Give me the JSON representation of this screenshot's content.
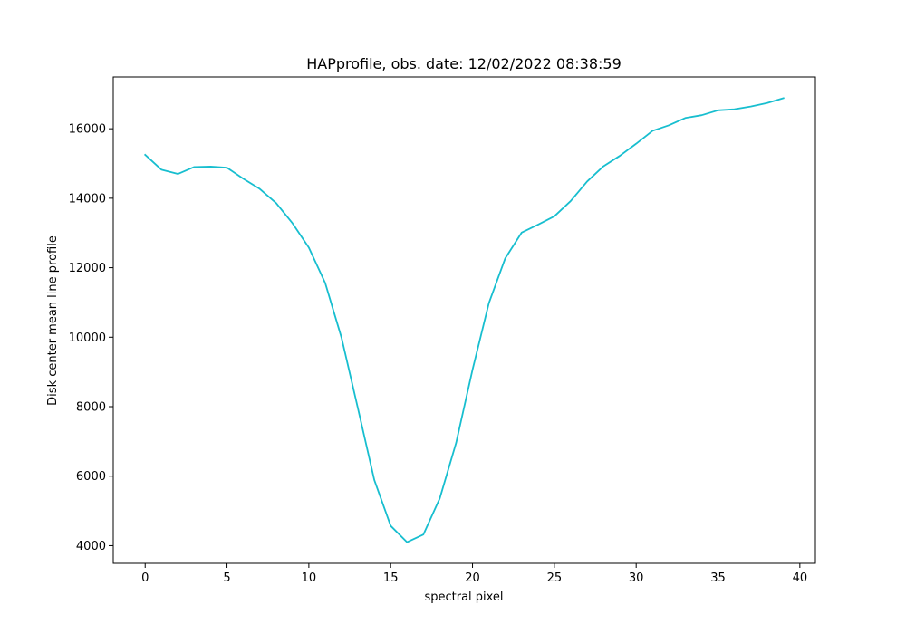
{
  "chart_data": {
    "type": "line",
    "title": "HAPprofile, obs. date: 12/02/2022 08:38:59",
    "xlabel": "spectral pixel",
    "ylabel": "Disk center mean line profile",
    "xlim": [
      -1.95,
      40.95
    ],
    "ylim": [
      3490,
      17490
    ],
    "x_ticks": [
      0,
      5,
      10,
      15,
      20,
      25,
      30,
      35,
      40
    ],
    "y_ticks": [
      4000,
      6000,
      8000,
      10000,
      12000,
      14000,
      16000
    ],
    "grid": false,
    "legend": "none",
    "line_color": "#17becf",
    "series": [
      {
        "x": [
          0,
          1,
          2,
          3,
          4,
          5,
          6,
          7,
          8,
          9,
          10,
          11,
          12,
          13,
          14,
          15,
          16,
          17,
          18,
          19,
          20,
          21,
          22,
          23,
          24,
          25,
          26,
          27,
          28,
          29,
          30,
          31,
          32,
          33,
          34,
          35,
          36,
          37,
          38,
          39
        ],
        "values": [
          15250,
          14820,
          14700,
          14900,
          14910,
          14880,
          14560,
          14270,
          13860,
          13280,
          12580,
          11560,
          9980,
          7950,
          5890,
          4570,
          4100,
          4320,
          5360,
          6960,
          9060,
          10980,
          12270,
          13010,
          13240,
          13480,
          13920,
          14480,
          14920,
          15220,
          15570,
          15940,
          16100,
          16310,
          16390,
          16530,
          16560,
          16640,
          16740,
          16880
        ]
      }
    ]
  }
}
